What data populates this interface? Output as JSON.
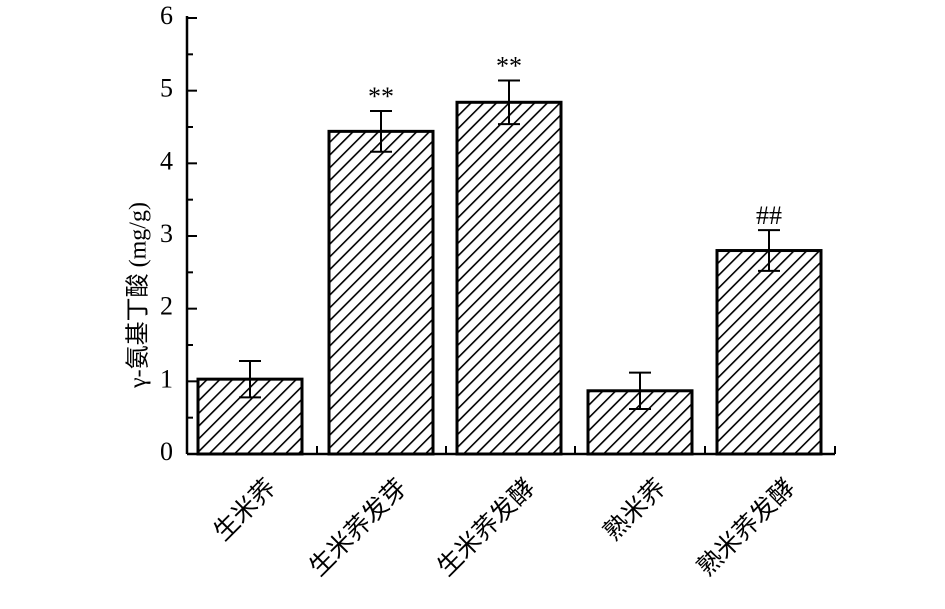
{
  "chart_data": {
    "type": "bar",
    "ylabel": "γ-氨基丁酸 (mg/g)",
    "xlabel": "",
    "ylim": [
      0,
      6
    ],
    "yticks": [
      "0",
      "1",
      "2",
      "3",
      "4",
      "5",
      "6"
    ],
    "categories": [
      "生米荞",
      "生米荞发芽",
      "生米荞发酵",
      "熟米荞",
      "熟米荞发酵"
    ],
    "values": [
      1.03,
      4.44,
      4.84,
      0.87,
      2.8
    ],
    "errors": [
      0.25,
      0.28,
      0.3,
      0.25,
      0.28
    ],
    "annotations": [
      "",
      "**",
      "**",
      "",
      "##"
    ],
    "fill_pattern": "diagonal-hatch",
    "bar_color": "#ffffff",
    "edge_color": "#000000",
    "grid": false
  }
}
